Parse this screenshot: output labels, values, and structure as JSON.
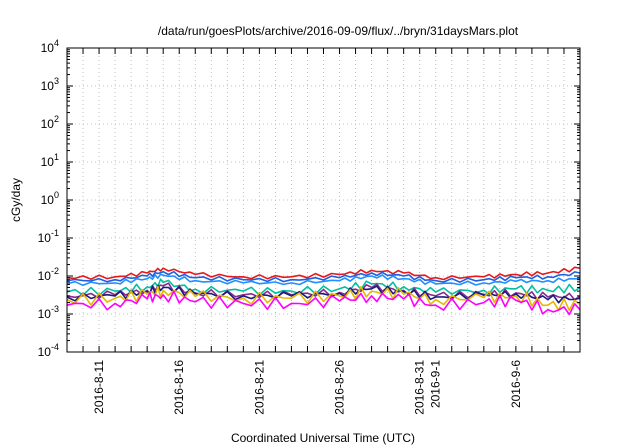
{
  "chart_data": {
    "type": "line",
    "title": "/data/run/goesPlots/archive/2016-09-09/flux/../bryn/31daysMars.plot",
    "xlabel": "Coordinated Universal Time (UTC)",
    "ylabel": "cGy/day",
    "yscale": "log",
    "ylim": [
      0.0001,
      10000
    ],
    "xlim": [
      "2016-08-09",
      "2016-09-10"
    ],
    "grid": true,
    "x_ticks": [
      "2016-8-11",
      "2016-8-16",
      "2016-8-21",
      "2016-8-26",
      "2016-8-31",
      "2016-9-1",
      "2016-9-6"
    ],
    "y_ticks": [
      {
        "value": 0.0001,
        "base": "10",
        "exp": "-4"
      },
      {
        "value": 0.001,
        "base": "10",
        "exp": "-3"
      },
      {
        "value": 0.01,
        "base": "10",
        "exp": "-2"
      },
      {
        "value": 0.1,
        "base": "10",
        "exp": "-1"
      },
      {
        "value": 1,
        "base": "10",
        "exp": "0"
      },
      {
        "value": 10,
        "base": "10",
        "exp": "1"
      },
      {
        "value": 100,
        "base": "10",
        "exp": "2"
      },
      {
        "value": 1000,
        "base": "10",
        "exp": "3"
      },
      {
        "value": 10000,
        "base": "10",
        "exp": "4"
      }
    ],
    "series": [
      {
        "color": "#e41a1c",
        "points": [
          [
            "2016-08-09",
            0.009
          ],
          [
            "2016-08-12",
            0.0095
          ],
          [
            "2016-08-14",
            0.012
          ],
          [
            "2016-08-15",
            0.016
          ],
          [
            "2016-08-17",
            0.011
          ],
          [
            "2016-08-20",
            0.0095
          ],
          [
            "2016-08-23",
            0.0095
          ],
          [
            "2016-08-26",
            0.011
          ],
          [
            "2016-08-28",
            0.014
          ],
          [
            "2016-08-30",
            0.012
          ],
          [
            "2016-09-01",
            0.009
          ],
          [
            "2016-09-04",
            0.0095
          ],
          [
            "2016-09-06",
            0.011
          ],
          [
            "2016-09-08",
            0.012
          ],
          [
            "2016-09-10",
            0.016
          ]
        ]
      },
      {
        "color": "#1f5fe0",
        "points": [
          [
            "2016-08-09",
            0.0075
          ],
          [
            "2016-08-12",
            0.008
          ],
          [
            "2016-08-14",
            0.01
          ],
          [
            "2016-08-15",
            0.013
          ],
          [
            "2016-08-17",
            0.009
          ],
          [
            "2016-08-20",
            0.008
          ],
          [
            "2016-08-23",
            0.008
          ],
          [
            "2016-08-26",
            0.009
          ],
          [
            "2016-08-28",
            0.012
          ],
          [
            "2016-08-30",
            0.01
          ],
          [
            "2016-09-01",
            0.0075
          ],
          [
            "2016-09-04",
            0.008
          ],
          [
            "2016-09-06",
            0.009
          ],
          [
            "2016-09-08",
            0.0095
          ],
          [
            "2016-09-10",
            0.012
          ]
        ]
      },
      {
        "color": "#1e90ff",
        "points": [
          [
            "2016-08-09",
            0.0062
          ],
          [
            "2016-08-12",
            0.0066
          ],
          [
            "2016-08-14",
            0.0085
          ],
          [
            "2016-08-15",
            0.0105
          ],
          [
            "2016-08-17",
            0.0075
          ],
          [
            "2016-08-20",
            0.0066
          ],
          [
            "2016-08-23",
            0.0066
          ],
          [
            "2016-08-26",
            0.0075
          ],
          [
            "2016-08-28",
            0.01
          ],
          [
            "2016-08-30",
            0.0085
          ],
          [
            "2016-09-01",
            0.0062
          ],
          [
            "2016-09-04",
            0.0066
          ],
          [
            "2016-09-06",
            0.0072
          ],
          [
            "2016-09-08",
            0.0075
          ],
          [
            "2016-09-10",
            0.0085
          ]
        ]
      },
      {
        "color": "#00c0a0",
        "points": [
          [
            "2016-08-09",
            0.0038
          ],
          [
            "2016-08-12",
            0.004
          ],
          [
            "2016-08-14",
            0.0052
          ],
          [
            "2016-08-15",
            0.0068
          ],
          [
            "2016-08-17",
            0.0045
          ],
          [
            "2016-08-20",
            0.004
          ],
          [
            "2016-08-23",
            0.004
          ],
          [
            "2016-08-26",
            0.0046
          ],
          [
            "2016-08-28",
            0.0062
          ],
          [
            "2016-08-30",
            0.0052
          ],
          [
            "2016-09-01",
            0.0038
          ],
          [
            "2016-09-04",
            0.0042
          ],
          [
            "2016-09-06",
            0.0046
          ],
          [
            "2016-09-08",
            0.0042
          ],
          [
            "2016-09-10",
            0.005
          ]
        ]
      },
      {
        "color": "#8b2b8b",
        "points": [
          [
            "2016-08-09",
            0.003
          ],
          [
            "2016-08-12",
            0.0032
          ],
          [
            "2016-08-14",
            0.0042
          ],
          [
            "2016-08-15",
            0.0055
          ],
          [
            "2016-08-17",
            0.0036
          ],
          [
            "2016-08-20",
            0.0032
          ],
          [
            "2016-08-23",
            0.0032
          ],
          [
            "2016-08-26",
            0.0037
          ],
          [
            "2016-08-28",
            0.005
          ],
          [
            "2016-08-30",
            0.0042
          ],
          [
            "2016-09-01",
            0.003
          ],
          [
            "2016-09-04",
            0.0033
          ],
          [
            "2016-09-06",
            0.0036
          ],
          [
            "2016-09-08",
            0.0028
          ],
          [
            "2016-09-10",
            0.003
          ]
        ]
      },
      {
        "color": "#1a1a80",
        "points": [
          [
            "2016-08-09",
            0.0028
          ],
          [
            "2016-08-12",
            0.003
          ],
          [
            "2016-08-14",
            0.0039
          ],
          [
            "2016-08-15",
            0.005
          ],
          [
            "2016-08-17",
            0.0034
          ],
          [
            "2016-08-20",
            0.003
          ],
          [
            "2016-08-23",
            0.003
          ],
          [
            "2016-08-26",
            0.0035
          ],
          [
            "2016-08-28",
            0.0046
          ],
          [
            "2016-08-30",
            0.0039
          ],
          [
            "2016-09-01",
            0.0028
          ],
          [
            "2016-09-04",
            0.0031
          ],
          [
            "2016-09-06",
            0.0034
          ],
          [
            "2016-09-08",
            0.0024
          ],
          [
            "2016-09-10",
            0.0026
          ]
        ]
      },
      {
        "color": "#e6b800",
        "points": [
          [
            "2016-08-09",
            0.0024
          ],
          [
            "2016-08-12",
            0.0026
          ],
          [
            "2016-08-14",
            0.0033
          ],
          [
            "2016-08-15",
            0.0042
          ],
          [
            "2016-08-17",
            0.0029
          ],
          [
            "2016-08-20",
            0.0026
          ],
          [
            "2016-08-23",
            0.0026
          ],
          [
            "2016-08-26",
            0.003
          ],
          [
            "2016-08-28",
            0.004
          ],
          [
            "2016-08-30",
            0.0033
          ],
          [
            "2016-09-01",
            0.0024
          ],
          [
            "2016-09-04",
            0.0027
          ],
          [
            "2016-09-06",
            0.003
          ],
          [
            "2016-09-08",
            0.0017
          ],
          [
            "2016-09-10",
            0.0018
          ]
        ]
      },
      {
        "color": "#ff00ff",
        "points": [
          [
            "2016-08-09",
            0.0017
          ],
          [
            "2016-08-12",
            0.0019
          ],
          [
            "2016-08-14",
            0.0025
          ],
          [
            "2016-08-15",
            0.0032
          ],
          [
            "2016-08-17",
            0.0021
          ],
          [
            "2016-08-20",
            0.0019
          ],
          [
            "2016-08-23",
            0.0019
          ],
          [
            "2016-08-26",
            0.0022
          ],
          [
            "2016-08-28",
            0.003
          ],
          [
            "2016-08-30",
            0.0025
          ],
          [
            "2016-09-01",
            0.0017
          ],
          [
            "2016-09-04",
            0.002
          ],
          [
            "2016-09-06",
            0.0023
          ],
          [
            "2016-09-08",
            0.0013
          ],
          [
            "2016-09-10",
            0.0013
          ]
        ]
      }
    ]
  }
}
